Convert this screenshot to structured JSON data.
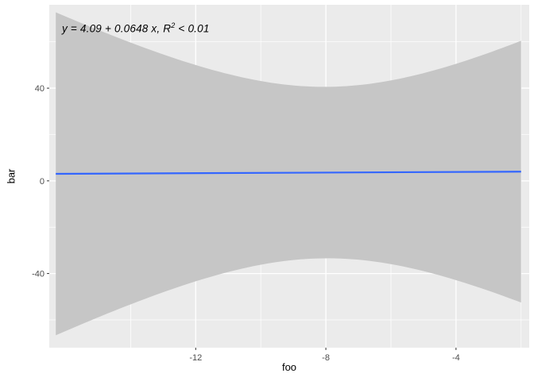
{
  "chart_data": {
    "type": "line",
    "title": "",
    "xlabel": "foo",
    "ylabel": "bar",
    "xlim": [
      -16.5,
      -1.75
    ],
    "ylim": [
      -72,
      76
    ],
    "x_ticks": [
      -12,
      -8,
      -4
    ],
    "y_ticks": [
      -40,
      0,
      40
    ],
    "x_minor_ticks": [
      -14,
      -10,
      -6,
      -2
    ],
    "y_minor_ticks": [
      -60,
      -20,
      20,
      60
    ],
    "grid": true,
    "legend_position": "none",
    "annotation": {
      "prefix": "y = 4.09 + 0.0648 x, R",
      "sup": "2",
      "suffix": " < 0.01"
    },
    "regression": {
      "intercept": 4.09,
      "slope": 0.0648,
      "r_squared_note": "R^2 < 0.01",
      "x_range": [
        -16.3,
        -2.0
      ],
      "fit_endpoints": [
        {
          "x": -16.3,
          "y": 3.03
        },
        {
          "x": -2.0,
          "y": 3.96
        }
      ]
    },
    "confidence_band": {
      "min_halfwidth": 37,
      "center_x": -8.0,
      "spread": 5.2,
      "shape": "hourglass"
    },
    "colors": {
      "panel_bg": "#EBEBEB",
      "band": "#C6C6C6",
      "line": "#3366FF",
      "grid": "#FFFFFF",
      "tick_label": "#4D4D4D",
      "axis_title": "#000000"
    }
  }
}
